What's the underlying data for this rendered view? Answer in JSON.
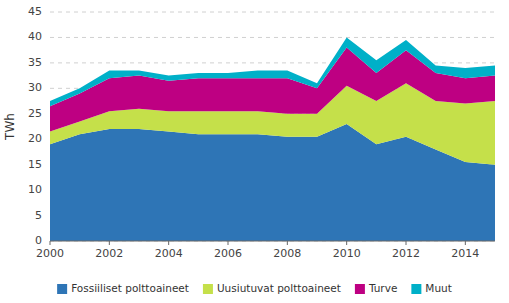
{
  "chart_data": {
    "type": "area",
    "stacked": true,
    "x": [
      2000,
      2001,
      2002,
      2003,
      2004,
      2005,
      2006,
      2007,
      2008,
      2009,
      2010,
      2011,
      2012,
      2013,
      2014,
      2015
    ],
    "series": [
      {
        "name": "Fossiiliset polttoaineet",
        "color": "#2E75B6",
        "values": [
          19.0,
          21.0,
          22.0,
          22.0,
          21.5,
          21.0,
          21.0,
          21.0,
          20.5,
          20.5,
          23.0,
          19.0,
          20.5,
          18.0,
          15.5,
          15.0
        ]
      },
      {
        "name": "Uusiutuvat polttoaineet",
        "color": "#C5E04A",
        "values": [
          2.5,
          2.5,
          3.5,
          4.0,
          4.0,
          4.5,
          4.5,
          4.5,
          4.5,
          4.5,
          7.5,
          8.5,
          10.5,
          9.5,
          11.5,
          12.5
        ]
      },
      {
        "name": "Turve",
        "color": "#BE0082",
        "values": [
          5.0,
          5.5,
          6.5,
          6.5,
          6.0,
          6.5,
          6.5,
          6.5,
          7.0,
          5.0,
          7.5,
          5.5,
          6.5,
          5.5,
          5.0,
          5.0
        ]
      },
      {
        "name": "Muut",
        "color": "#00B0C8",
        "values": [
          1.0,
          1.0,
          1.5,
          1.0,
          1.0,
          1.0,
          1.0,
          1.5,
          1.5,
          1.0,
          2.0,
          2.5,
          2.0,
          1.5,
          2.0,
          2.0
        ]
      }
    ],
    "y_label": "TWh",
    "xlim": [
      2000,
      2015
    ],
    "xticks": [
      2000,
      2002,
      2004,
      2006,
      2008,
      2010,
      2012,
      2014
    ],
    "ylim": [
      0,
      45
    ],
    "yticks": [
      0,
      5,
      10,
      15,
      20,
      25,
      30,
      35,
      40,
      45
    ],
    "grid": true,
    "legend": "bottom"
  }
}
